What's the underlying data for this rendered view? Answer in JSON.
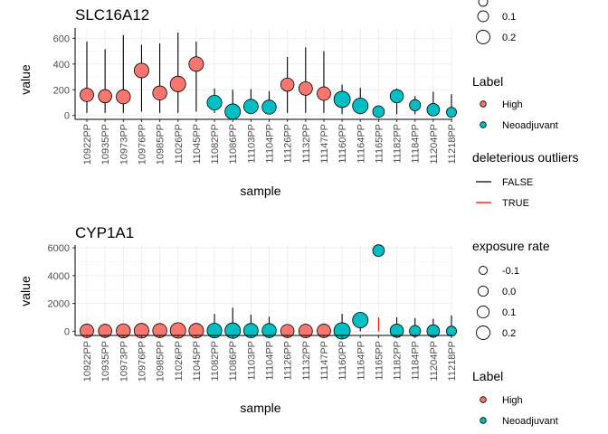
{
  "chart_data": [
    {
      "type": "scatter",
      "title": "SLC16A12",
      "xlabel": "sample",
      "ylabel": "value",
      "ylim": [
        -30,
        680
      ],
      "yticks": [
        0,
        200,
        400,
        600
      ],
      "grid": true,
      "categories": [
        "10922PP",
        "10935PP",
        "10973PP",
        "10976PP",
        "10985PP",
        "11026PP",
        "11045PP",
        "11082PP",
        "11086PP",
        "11103PP",
        "11104PP",
        "11126PP",
        "11132PP",
        "11147PP",
        "11160PP",
        "11164PP",
        "11165PP",
        "11182PP",
        "11184PP",
        "11204PP",
        "11218PP"
      ],
      "label": [
        "High",
        "High",
        "High",
        "High",
        "High",
        "High",
        "High",
        "Neoadjuvant",
        "Neoadjuvant",
        "Neoadjuvant",
        "Neoadjuvant",
        "High",
        "High",
        "High",
        "Neoadjuvant",
        "Neoadjuvant",
        "Neoadjuvant",
        "Neoadjuvant",
        "Neoadjuvant",
        "Neoadjuvant",
        "Neoadjuvant"
      ],
      "point_value": [
        160,
        150,
        145,
        350,
        175,
        245,
        400,
        100,
        30,
        70,
        65,
        240,
        210,
        170,
        125,
        75,
        30,
        150,
        80,
        45,
        25
      ],
      "exposure_rate": [
        0.1,
        0.09,
        0.12,
        0.14,
        0.12,
        0.17,
        0.14,
        0.14,
        0.17,
        0.13,
        0.12,
        0.09,
        0.1,
        0.1,
        0.2,
        0.17,
        0.03,
        0.09,
        0.01,
        0.06,
        -0.03
      ],
      "range_low": [
        20,
        20,
        20,
        30,
        20,
        20,
        30,
        20,
        10,
        10,
        10,
        20,
        20,
        20,
        10,
        10,
        10,
        10,
        10,
        10,
        10
      ],
      "range_high": [
        575,
        515,
        625,
        550,
        560,
        645,
        575,
        210,
        200,
        205,
        190,
        455,
        530,
        500,
        240,
        215,
        0,
        210,
        150,
        185,
        165
      ],
      "deleterious_outlier": [
        false,
        false,
        false,
        false,
        false,
        false,
        false,
        false,
        false,
        false,
        false,
        false,
        false,
        false,
        false,
        false,
        false,
        false,
        false,
        false,
        false
      ]
    },
    {
      "type": "scatter",
      "title": "CYP1A1",
      "xlabel": "sample",
      "ylabel": "value",
      "ylim": [
        -300,
        6200
      ],
      "yticks": [
        0,
        2000,
        4000,
        6000
      ],
      "grid": true,
      "categories": [
        "10922PP",
        "10935PP",
        "10973PP",
        "10976PP",
        "10985PP",
        "11026PP",
        "11045PP",
        "11082PP",
        "11086PP",
        "11103PP",
        "11104PP",
        "11126PP",
        "11132PP",
        "11147PP",
        "11160PP",
        "11164PP",
        "11165PP",
        "11182PP",
        "11184PP",
        "11204PP",
        "11218PP"
      ],
      "label": [
        "High",
        "High",
        "High",
        "High",
        "High",
        "High",
        "High",
        "Neoadjuvant",
        "Neoadjuvant",
        "Neoadjuvant",
        "Neoadjuvant",
        "High",
        "High",
        "High",
        "Neoadjuvant",
        "Neoadjuvant",
        "Neoadjuvant",
        "Neoadjuvant",
        "Neoadjuvant",
        "Neoadjuvant",
        "Neoadjuvant"
      ],
      "point_value": [
        30,
        30,
        30,
        40,
        50,
        60,
        40,
        50,
        50,
        50,
        50,
        20,
        20,
        30,
        30,
        800,
        5800,
        40,
        20,
        20,
        10
      ],
      "exposure_rate": [
        0.1,
        0.09,
        0.12,
        0.14,
        0.12,
        0.17,
        0.14,
        0.14,
        0.17,
        0.13,
        0.12,
        0.09,
        0.1,
        0.1,
        0.2,
        0.17,
        0.03,
        0.09,
        0.01,
        0.06,
        -0.03
      ],
      "range_low": [
        0,
        0,
        0,
        0,
        0,
        0,
        0,
        0,
        0,
        0,
        0,
        0,
        0,
        0,
        0,
        0,
        0,
        0,
        0,
        0,
        0
      ],
      "range_high": [
        0,
        0,
        0,
        0,
        0,
        0,
        0,
        1250,
        1700,
        1200,
        1050,
        0,
        0,
        0,
        1250,
        1250,
        1000,
        1000,
        950,
        900,
        1150
      ],
      "deleterious_outlier": [
        false,
        false,
        false,
        false,
        false,
        false,
        false,
        false,
        false,
        false,
        false,
        false,
        false,
        false,
        false,
        false,
        true,
        false,
        false,
        false,
        false
      ]
    }
  ],
  "colors": {
    "High": "#f8766d",
    "Neoadjuvant": "#00bfc4",
    "outlier_false": "#000000",
    "outlier_true": "#ff0000"
  },
  "legend": {
    "size_top": {
      "labels": [
        "0.1",
        "0.2"
      ],
      "values": [
        0.1,
        0.2
      ]
    },
    "label_title": "Label",
    "label_items": [
      "High",
      "Neoadjuvant"
    ],
    "outliers_title": "deleterious outliers",
    "outliers_items": [
      "FALSE",
      "TRUE"
    ],
    "size_bottom": {
      "title": "exposure rate",
      "labels": [
        "-0.1",
        "0.0",
        "0.1",
        "0.2"
      ],
      "values": [
        -0.1,
        0.0,
        0.1,
        0.2
      ]
    },
    "label2_title": "Label",
    "label2_items": [
      "High",
      "Neoadjuvant"
    ]
  }
}
